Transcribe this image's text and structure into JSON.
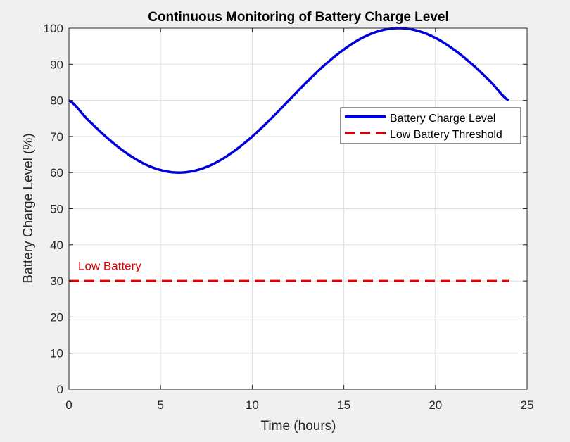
{
  "chart_data": {
    "type": "line",
    "title": "Continuous Monitoring of Battery Charge Level",
    "xlabel": "Time (hours)",
    "ylabel": "Battery Charge Level (%)",
    "xlim": [
      0,
      25
    ],
    "ylim": [
      0,
      100
    ],
    "xticks": [
      0,
      5,
      10,
      15,
      20,
      25
    ],
    "yticks": [
      0,
      10,
      20,
      30,
      40,
      50,
      60,
      70,
      80,
      90,
      100
    ],
    "grid": true,
    "legend_position": "top-right",
    "series": [
      {
        "name": "Battery Charge Level",
        "color": "#0000dd",
        "style": "solid",
        "x": [
          0,
          1,
          2,
          3,
          4,
          5,
          6,
          7,
          8,
          9,
          10,
          11,
          12,
          13,
          14,
          15,
          16,
          17,
          18,
          19,
          20,
          21,
          22,
          23,
          24
        ],
        "y": [
          80,
          74.8,
          70,
          65.9,
          62.7,
          60.7,
          60,
          60.7,
          62.7,
          65.9,
          70,
          74.8,
          80,
          85.2,
          90,
          94.1,
          97.3,
          99.3,
          100,
          99.3,
          97.3,
          94.1,
          90,
          85.2,
          80
        ]
      },
      {
        "name": "Low Battery Threshold",
        "color": "#dd0000",
        "style": "dashed",
        "x": [
          0,
          24
        ],
        "y": [
          30,
          30
        ]
      }
    ],
    "annotations": [
      {
        "text": "Low Battery",
        "x": 0.5,
        "y": 33,
        "color": "#dd0000"
      }
    ]
  }
}
